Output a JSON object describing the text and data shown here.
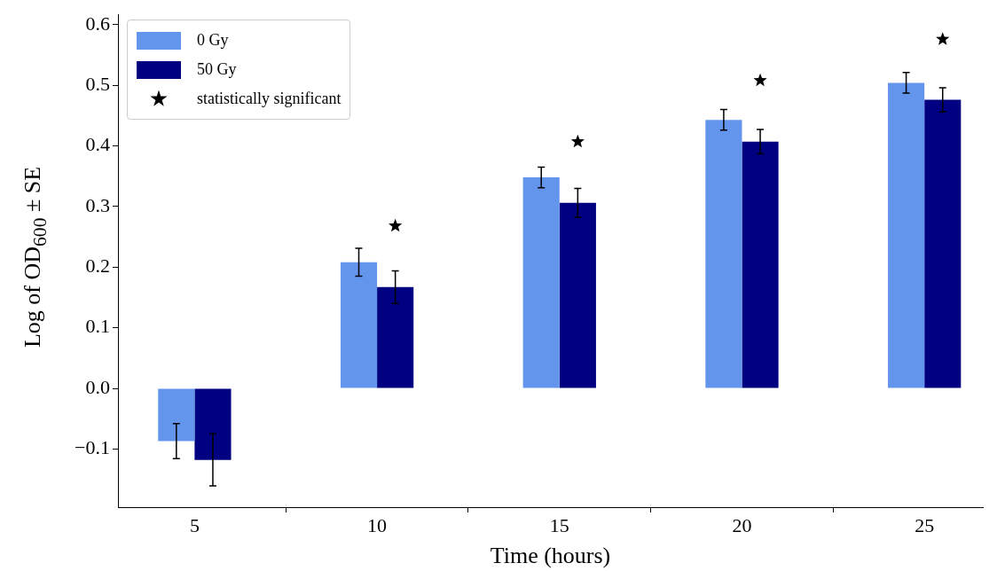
{
  "chart_data": {
    "type": "bar",
    "xlabel": "Time (hours)",
    "ylabel": "Log of OD$_{600}$ ± SE",
    "x": [
      5,
      10,
      15,
      20,
      25
    ],
    "series": [
      {
        "name": "0 Gy",
        "color": "#6495ed",
        "values": [
          -0.087,
          0.208,
          0.348,
          0.443,
          0.504
        ],
        "errors": [
          0.029,
          0.023,
          0.017,
          0.017,
          0.017
        ]
      },
      {
        "name": "50 Gy",
        "color": "#000080",
        "values": [
          -0.118,
          0.167,
          0.306,
          0.407,
          0.476
        ],
        "errors": [
          0.043,
          0.027,
          0.024,
          0.02,
          0.02
        ]
      },
      {
        "name": "statistically significant",
        "type": "scatter",
        "marker": "star",
        "color": "#000000",
        "x": [
          10.5,
          15.5,
          20.5,
          25.5
        ],
        "values": [
          0.268,
          0.407,
          0.508,
          0.576
        ]
      }
    ],
    "xlim": [
      2.9,
      26.6
    ],
    "xticks": [
      5,
      10,
      15,
      20,
      25
    ],
    "ylim": [
      -0.196,
      0.617
    ],
    "yticks": [
      {
        "value": -0.1,
        "label": "−0.1"
      },
      {
        "value": 0,
        "label": "0.0"
      },
      {
        "value": 0.1,
        "label": "0.1"
      },
      {
        "value": 0.2,
        "label": "0.2"
      },
      {
        "value": 0.3,
        "label": "0.3"
      },
      {
        "value": 0.4,
        "label": "0.4"
      },
      {
        "value": 0.5,
        "label": "0.5"
      },
      {
        "value": 0.6,
        "label": "0.6"
      }
    ],
    "grid": false,
    "legend": "top left"
  }
}
